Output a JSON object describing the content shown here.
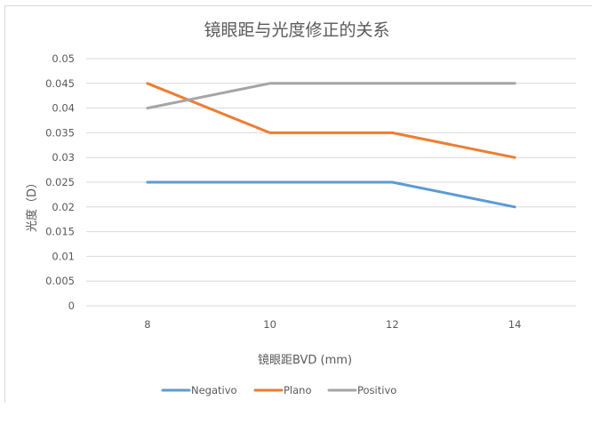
{
  "chart_data": {
    "type": "line",
    "title": "镜眼距与光度修正的关系",
    "xlabel": "镜眼距BVD (mm)",
    "ylabel": "光度（D）",
    "categories": [
      "8",
      "10",
      "12",
      "14"
    ],
    "ylim": [
      0,
      0.05
    ],
    "yticks": [
      "0",
      "0.005",
      "0.01",
      "0.015",
      "0.02",
      "0.025",
      "0.03",
      "0.035",
      "0.04",
      "0.045",
      "0.05"
    ],
    "grid": true,
    "legend_position": "bottom",
    "series": [
      {
        "name": "Negativo",
        "color": "#5b9bd5",
        "values": [
          0.025,
          0.025,
          0.025,
          0.02
        ]
      },
      {
        "name": "Plano",
        "color": "#ed7d31",
        "values": [
          0.045,
          0.035,
          0.035,
          0.03
        ]
      },
      {
        "name": "Positivo",
        "color": "#a5a5a5",
        "values": [
          0.04,
          0.045,
          0.045,
          0.045
        ]
      }
    ]
  }
}
